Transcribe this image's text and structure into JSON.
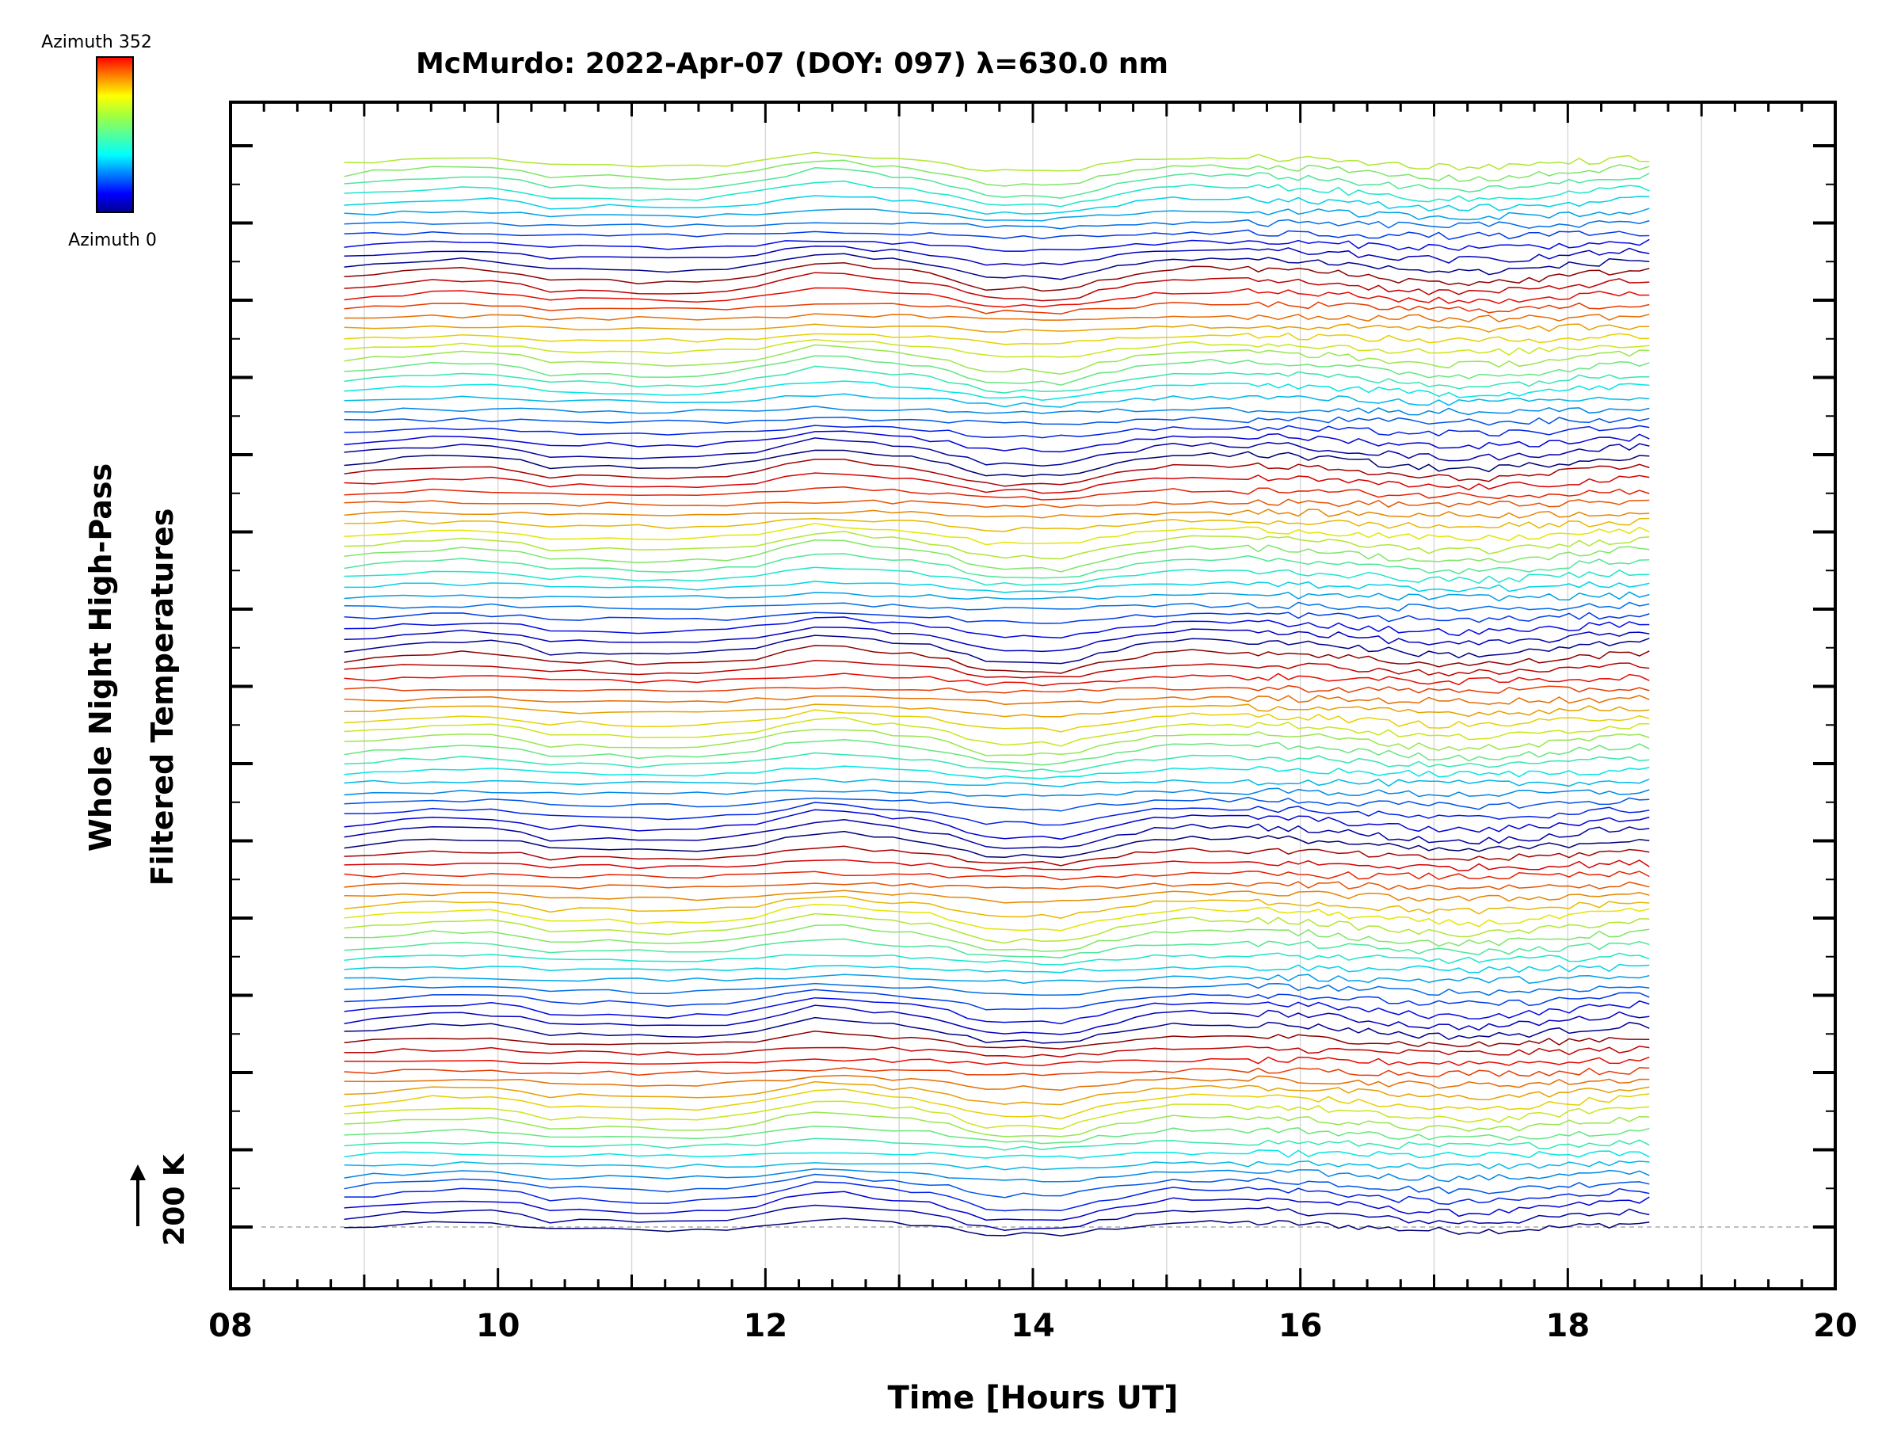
{
  "chart_data": {
    "type": "line",
    "title": "McMurdo: 2022-Apr-07 (DOY: 097) λ=630.0 nm",
    "xlabel": "Time [Hours UT]",
    "ylabel_line1": "Whole Night High-Pass",
    "ylabel_line2": "Filtered Temperatures",
    "xlim": [
      8,
      20
    ],
    "x_ticks": [
      "08",
      "10",
      "12",
      "14",
      "16",
      "18",
      "20"
    ],
    "x_tick_values": [
      8,
      10,
      12,
      14,
      16,
      18,
      20
    ],
    "scale_bar_label": "200 K",
    "colorbar": {
      "top_label": "Azimuth 352",
      "bottom_label": "Azimuth 0"
    },
    "grid": true,
    "time_start": 8.85,
    "time_end": 18.65,
    "n_traces": 104,
    "trace_spacing_note": "stacked traces offset by 2 K each"
  }
}
